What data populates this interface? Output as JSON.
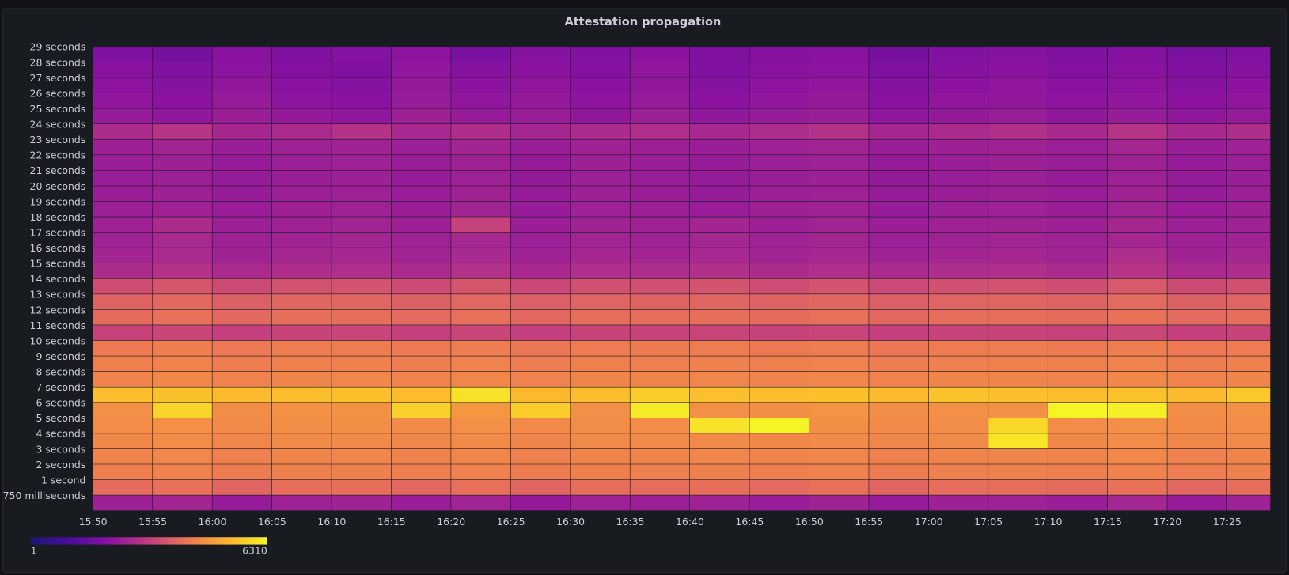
{
  "chart_data": {
    "type": "heatmap",
    "title": "Attestation propagation",
    "x": [
      "15:50",
      "15:55",
      "16:00",
      "16:05",
      "16:10",
      "16:15",
      "16:20",
      "16:25",
      "16:30",
      "16:35",
      "16:40",
      "16:45",
      "16:50",
      "16:55",
      "17:00",
      "17:05",
      "17:10",
      "17:15",
      "17:20",
      "17:25"
    ],
    "y": [
      "29 seconds",
      "28 seconds",
      "27 seconds",
      "26 seconds",
      "25 seconds",
      "24 seconds",
      "23 seconds",
      "22 seconds",
      "21 seconds",
      "20 seconds",
      "19 seconds",
      "18 seconds",
      "17 seconds",
      "16 seconds",
      "15 seconds",
      "14 seconds",
      "13 seconds",
      "12 seconds",
      "11 seconds",
      "10 seconds",
      "9 seconds",
      "8 seconds",
      "7 seconds",
      "6 seconds",
      "5 seconds",
      "4 seconds",
      "3 seconds",
      "2 seconds",
      "1 second",
      "750 milliseconds"
    ],
    "values": [
      [
        15,
        12,
        18,
        14,
        16,
        20,
        13,
        17,
        15,
        19,
        14,
        16,
        18,
        12,
        15,
        17,
        14,
        16,
        13,
        15
      ],
      [
        18,
        15,
        20,
        16,
        14,
        22,
        17,
        19,
        16,
        21,
        15,
        18,
        20,
        14,
        17,
        19,
        16,
        18,
        15,
        17
      ],
      [
        20,
        17,
        22,
        18,
        16,
        24,
        19,
        21,
        18,
        23,
        17,
        20,
        22,
        16,
        19,
        21,
        18,
        20,
        17,
        19
      ],
      [
        22,
        19,
        25,
        20,
        18,
        26,
        21,
        24,
        20,
        25,
        19,
        22,
        24,
        18,
        21,
        23,
        20,
        22,
        19,
        21
      ],
      [
        26,
        22,
        28,
        24,
        21,
        30,
        25,
        27,
        23,
        29,
        22,
        26,
        28,
        21,
        24,
        27,
        23,
        26,
        22,
        25
      ],
      [
        45,
        60,
        38,
        42,
        55,
        40,
        48,
        36,
        44,
        50,
        39,
        46,
        52,
        37,
        43,
        49,
        41,
        58,
        40,
        47
      ],
      [
        30,
        34,
        28,
        31,
        33,
        29,
        35,
        27,
        32,
        30,
        28,
        31,
        34,
        27,
        30,
        32,
        29,
        36,
        28,
        31
      ],
      [
        28,
        30,
        26,
        29,
        31,
        27,
        32,
        25,
        30,
        28,
        26,
        29,
        31,
        25,
        28,
        30,
        27,
        32,
        26,
        29
      ],
      [
        27,
        29,
        25,
        28,
        30,
        26,
        31,
        24,
        29,
        27,
        25,
        28,
        30,
        24,
        27,
        29,
        26,
        31,
        25,
        28
      ],
      [
        28,
        30,
        26,
        29,
        31,
        27,
        33,
        25,
        30,
        28,
        26,
        29,
        31,
        25,
        28,
        30,
        27,
        33,
        26,
        29
      ],
      [
        29,
        31,
        27,
        30,
        32,
        28,
        34,
        26,
        31,
        29,
        27,
        30,
        32,
        26,
        29,
        31,
        28,
        34,
        27,
        30
      ],
      [
        31,
        45,
        29,
        32,
        34,
        30,
        90,
        28,
        33,
        31,
        35,
        30,
        34,
        28,
        31,
        33,
        30,
        36,
        29,
        32
      ],
      [
        32,
        40,
        30,
        33,
        35,
        31,
        38,
        29,
        34,
        32,
        36,
        31,
        35,
        29,
        32,
        34,
        31,
        37,
        30,
        33
      ],
      [
        35,
        42,
        33,
        36,
        38,
        34,
        40,
        32,
        37,
        35,
        39,
        34,
        38,
        32,
        35,
        37,
        34,
        48,
        33,
        36
      ],
      [
        45,
        55,
        42,
        48,
        50,
        44,
        52,
        41,
        49,
        46,
        51,
        45,
        50,
        42,
        47,
        49,
        44,
        60,
        43,
        48
      ],
      [
        120,
        150,
        110,
        135,
        140,
        115,
        145,
        105,
        130,
        125,
        140,
        118,
        138,
        108,
        128,
        134,
        122,
        160,
        112,
        130
      ],
      [
        200,
        230,
        185,
        215,
        220,
        190,
        225,
        180,
        210,
        205,
        218,
        195,
        222,
        182,
        208,
        214,
        198,
        240,
        188,
        212
      ],
      [
        250,
        280,
        230,
        265,
        270,
        240,
        275,
        225,
        260,
        255,
        268,
        245,
        272,
        228,
        258,
        264,
        248,
        290,
        236,
        262
      ],
      [
        90,
        100,
        85,
        95,
        98,
        88,
        102,
        84,
        94,
        92,
        96,
        89,
        99,
        85,
        93,
        95,
        90,
        105,
        87,
        94
      ],
      [
        350,
        380,
        330,
        365,
        370,
        340,
        375,
        325,
        360,
        355,
        368,
        345,
        372,
        328,
        358,
        364,
        348,
        390,
        336,
        362
      ],
      [
        400,
        430,
        380,
        415,
        420,
        390,
        425,
        375,
        410,
        405,
        418,
        395,
        422,
        378,
        408,
        414,
        398,
        440,
        386,
        412
      ],
      [
        450,
        480,
        430,
        465,
        470,
        440,
        475,
        425,
        460,
        455,
        468,
        445,
        472,
        428,
        458,
        464,
        448,
        490,
        436,
        462
      ],
      [
        1800,
        1950,
        1700,
        1850,
        1900,
        1750,
        4000,
        1650,
        1820,
        2600,
        1880,
        1780,
        1920,
        1680,
        2100,
        1860,
        1790,
        2000,
        1720,
        2300
      ],
      [
        600,
        3000,
        560,
        620,
        640,
        2800,
        700,
        2500,
        590,
        5000,
        610,
        580,
        650,
        570,
        600,
        620,
        6310,
        5500,
        580,
        610
      ],
      [
        550,
        600,
        520,
        570,
        580,
        530,
        590,
        510,
        560,
        550,
        4200,
        6310,
        575,
        515,
        555,
        3200,
        548,
        600,
        530,
        565
      ],
      [
        500,
        540,
        470,
        515,
        520,
        480,
        530,
        465,
        510,
        505,
        518,
        495,
        522,
        478,
        508,
        4500,
        498,
        540,
        486,
        512
      ],
      [
        450,
        480,
        420,
        465,
        470,
        430,
        475,
        415,
        460,
        455,
        468,
        445,
        472,
        418,
        458,
        464,
        448,
        490,
        426,
        462
      ],
      [
        400,
        430,
        370,
        415,
        420,
        380,
        425,
        365,
        410,
        405,
        418,
        395,
        422,
        368,
        408,
        414,
        398,
        440,
        376,
        412
      ],
      [
        250,
        280,
        220,
        265,
        270,
        230,
        275,
        215,
        260,
        255,
        268,
        245,
        272,
        218,
        258,
        264,
        248,
        290,
        226,
        262
      ],
      [
        30,
        35,
        25,
        32,
        33,
        28,
        34,
        24,
        31,
        29,
        32,
        27,
        33,
        25,
        30,
        31,
        28,
        36,
        26,
        31
      ]
    ],
    "color_scale": {
      "min": 1,
      "max": 6310,
      "log": true,
      "colors": [
        "#1c1670",
        "#4a0c9e",
        "#8a12a0",
        "#c23d80",
        "#ed7953",
        "#fdb42f",
        "#f5f526"
      ]
    }
  }
}
